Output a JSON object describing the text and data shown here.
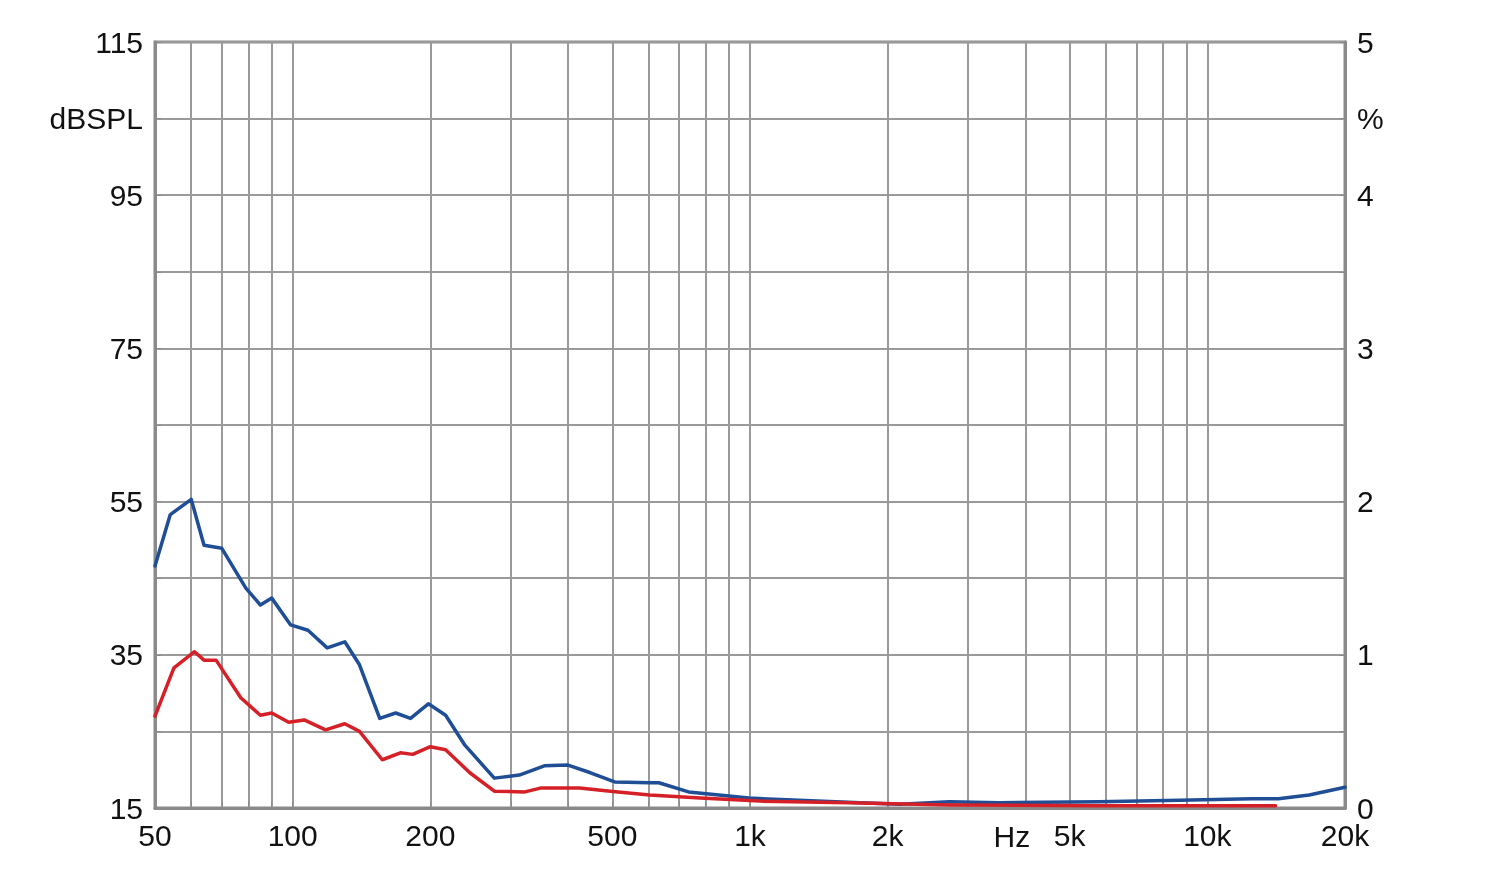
{
  "chart_data": {
    "type": "line",
    "xlabel": "Hz",
    "ylabel": "dBSPL",
    "y2label": "%",
    "log": "x",
    "grid": true,
    "marker": "none",
    "line_style": "solid",
    "xlim": [
      50,
      20000
    ],
    "xticks": [
      {
        "value": 50,
        "label": "50"
      },
      {
        "value": 60,
        "label": null
      },
      {
        "value": 70,
        "label": null
      },
      {
        "value": 80,
        "label": null
      },
      {
        "value": 90,
        "label": null
      },
      {
        "value": 100,
        "label": "100"
      },
      {
        "value": 200,
        "label": "200"
      },
      {
        "value": 300,
        "label": null
      },
      {
        "value": 400,
        "label": null
      },
      {
        "value": 500,
        "label": "500"
      },
      {
        "value": 600,
        "label": null
      },
      {
        "value": 700,
        "label": null
      },
      {
        "value": 800,
        "label": null
      },
      {
        "value": 900,
        "label": null
      },
      {
        "value": 1000,
        "label": "1k"
      },
      {
        "value": 2000,
        "label": "2k"
      },
      {
        "value": 3000,
        "label": null
      },
      {
        "value": 4000,
        "label": null
      },
      {
        "value": 5000,
        "label": "5k"
      },
      {
        "value": 6000,
        "label": null
      },
      {
        "value": 7000,
        "label": null
      },
      {
        "value": 8000,
        "label": null
      },
      {
        "value": 9000,
        "label": null
      },
      {
        "value": 10000,
        "label": "10k"
      },
      {
        "value": 20000,
        "label": "20k"
      }
    ],
    "ylim": [
      15,
      115
    ],
    "yticks": [
      15,
      {
        "value": 25,
        "label": null
      },
      35,
      {
        "value": 45,
        "label": null
      },
      55,
      {
        "value": 65,
        "label": null
      },
      75,
      {
        "value": 85,
        "label": null
      },
      95,
      {
        "value": 105,
        "label": null
      },
      115
    ],
    "y2lim": [
      0,
      5
    ],
    "y2ticks": [
      0,
      {
        "value": 0.5,
        "label": null
      },
      1,
      {
        "value": 1.5,
        "label": null
      },
      2,
      {
        "value": 2.5,
        "label": null
      },
      3,
      {
        "value": 3.5,
        "label": null
      },
      4,
      {
        "value": 4.5,
        "label": null
      },
      5
    ],
    "series": [
      {
        "color": "#1f4e96",
        "x": [
          50,
          54,
          60,
          64,
          70,
          79,
          85,
          90,
          99,
          108,
          119,
          130,
          140,
          155,
          168,
          181,
          198,
          216,
          238,
          276,
          313,
          355,
          400,
          448,
          506,
          603,
          632,
          734,
          995,
          1280,
          1740,
          2130,
          2730,
          3500,
          5780,
          8700,
          12500,
          14300,
          16700,
          20000
        ],
        "values": [
          46.6,
          53.3,
          55.3,
          49.3,
          48.9,
          43.7,
          41.5,
          42.4,
          38.9,
          38.2,
          35.9,
          36.7,
          33.7,
          26.7,
          27.4,
          26.7,
          28.6,
          27.1,
          23.2,
          18.9,
          19.3,
          20.5,
          20.6,
          19.6,
          18.4,
          18.3,
          18.3,
          17.1,
          16.3,
          16.0,
          15.7,
          15.5,
          15.8,
          15.7,
          15.8,
          16.0,
          16.2,
          16.2,
          16.7,
          17.7
        ]
      },
      {
        "color": "#d62027",
        "x": [
          50,
          55,
          61,
          64,
          68,
          77,
          85,
          90,
          98,
          106,
          118,
          130,
          140,
          157,
          172,
          183,
          200,
          216,
          244,
          276,
          322,
          348,
          424,
          495,
          603,
          778,
          1050,
          1650,
          2730,
          5780,
          9600,
          14100
        ],
        "values": [
          27.0,
          33.3,
          35.4,
          34.3,
          34.3,
          29.4,
          27.1,
          27.4,
          26.2,
          26.5,
          25.2,
          26.0,
          25.0,
          21.3,
          22.2,
          22.0,
          23.0,
          22.6,
          19.6,
          17.2,
          17.1,
          17.6,
          17.6,
          17.2,
          16.7,
          16.3,
          15.9,
          15.7,
          15.4,
          15.3,
          15.3,
          15.3
        ]
      }
    ]
  }
}
